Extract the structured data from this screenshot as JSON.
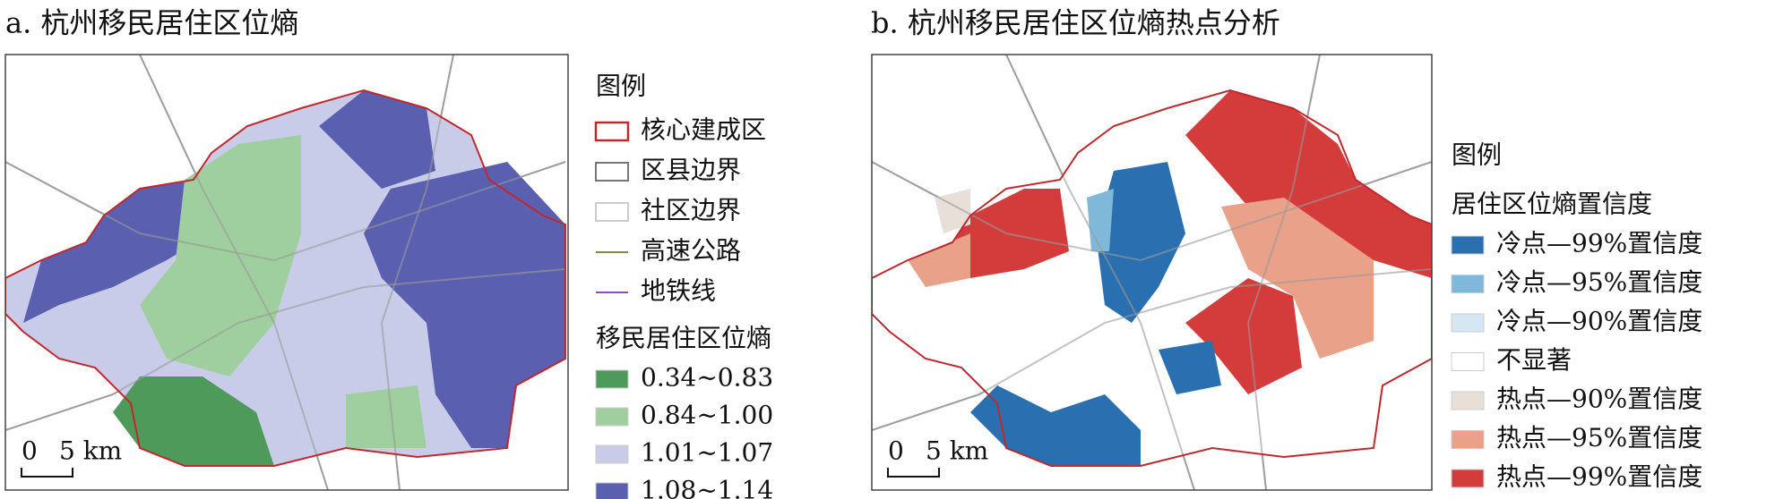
{
  "panels": [
    {
      "title": "a. 杭州移民居住区位熵",
      "legend_title": "图例",
      "layers": [
        {
          "label": "核心建成区",
          "color": "#c0282d"
        },
        {
          "label": "区县边界",
          "color": "#777777"
        },
        {
          "label": "社区边界",
          "color": "#cccccc"
        },
        {
          "label": "高速公路",
          "color": "#8a8a3a"
        },
        {
          "label": "地铁线",
          "color": "#8a4fb0"
        }
      ],
      "class_title": "移民居住区位熵",
      "classes": [
        {
          "label": "0.34~0.83",
          "color": "#4e9a5b"
        },
        {
          "label": "0.84~1.00",
          "color": "#9fcf9f"
        },
        {
          "label": "1.01~1.07",
          "color": "#c9cce8"
        },
        {
          "label": "1.08~1.14",
          "color": "#5a5fb0"
        }
      ],
      "scale": {
        "zero": "0",
        "distance": "5 km"
      }
    },
    {
      "title": "b. 杭州移民居住区位熵热点分析",
      "legend_title": "图例",
      "class_title": "居住区位熵置信度",
      "classes": [
        {
          "label": "冷点—99%置信度",
          "color": "#2a6fb0"
        },
        {
          "label": "冷点—95%置信度",
          "color": "#7fb8d8"
        },
        {
          "label": "冷点—90%置信度",
          "color": "#d4e7f3"
        },
        {
          "label": "不显著",
          "color": "#ffffff"
        },
        {
          "label": "热点—90%置信度",
          "color": "#e8e0d8"
        },
        {
          "label": "热点—95%置信度",
          "color": "#eaa189"
        },
        {
          "label": "热点—99%置信度",
          "color": "#d43c3c"
        }
      ],
      "scale": {
        "zero": "0",
        "distance": "5 km"
      }
    }
  ]
}
